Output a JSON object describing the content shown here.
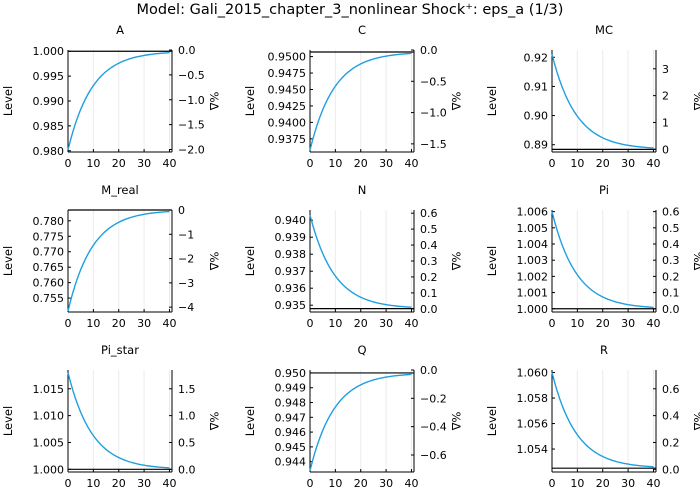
{
  "figure": {
    "title": "Model: Gali_2015_chapter_3_nonlinear        Shock⁺: eps_a  (1/3)",
    "line_color": "#1f9fe0"
  },
  "chart_data": [
    {
      "type": "line",
      "title": "A",
      "ylabel": "Level",
      "y2label": "%Δ",
      "xlim": [
        0,
        41
      ],
      "x_ticks": [
        0,
        10,
        20,
        30,
        40
      ],
      "ylim": [
        0.97975,
        1.00025
      ],
      "y_ticks": [
        "0.980",
        "0.985",
        "0.990",
        "0.995",
        "1.000"
      ],
      "y2lim": [
        -2.05,
        0.0
      ],
      "y2_ticks": [
        "0.0",
        "−0.5",
        "−1.0",
        "−1.5",
        "−2.0"
      ],
      "start": 0.9802,
      "ss": 1.0,
      "decay": 0.9,
      "ss_line": 1.0
    },
    {
      "type": "line",
      "title": "C",
      "ylabel": "Level",
      "y2label": "%Δ",
      "xlim": [
        0,
        41
      ],
      "x_ticks": [
        0,
        10,
        20,
        30,
        40
      ],
      "ylim": [
        0.9355,
        0.951
      ],
      "y_ticks": [
        "0.9375",
        "0.9400",
        "0.9425",
        "0.9450",
        "0.9475",
        "0.9500"
      ],
      "y2lim": [
        -1.63,
        0.0
      ],
      "y2_ticks": [
        "0.0",
        "−0.5",
        "−1.0",
        "−1.5"
      ],
      "start": 0.9358,
      "ss": 0.9507,
      "decay": 0.9,
      "ss_line": 0.9507
    },
    {
      "type": "line",
      "title": "MC",
      "ylabel": "Level",
      "y2label": "%Δ",
      "xlim": [
        0,
        41
      ],
      "x_ticks": [
        0,
        10,
        20,
        30,
        40
      ],
      "ylim": [
        0.8875,
        0.9225
      ],
      "y_ticks": [
        "0.89",
        "0.90",
        "0.91",
        "0.92"
      ],
      "y2lim": [
        -0.1,
        3.7
      ],
      "y2_ticks": [
        "0",
        "1",
        "2",
        "3"
      ],
      "start": 0.921,
      "ss": 0.8884,
      "decay": 0.9,
      "ss_line": 0.8884
    },
    {
      "type": "line",
      "title": "M_real",
      "ylabel": "Level",
      "y2label": "%Δ",
      "xlim": [
        0,
        41
      ],
      "x_ticks": [
        0,
        10,
        20,
        30,
        40
      ],
      "ylim": [
        0.7505,
        0.7835
      ],
      "y_ticks": [
        "0.755",
        "0.760",
        "0.765",
        "0.770",
        "0.775",
        "0.780"
      ],
      "y2lim": [
        -4.2,
        0.0
      ],
      "y2_ticks": [
        "0",
        "−1",
        "−2",
        "−3",
        "−4"
      ],
      "start": 0.7508,
      "ss": 0.7835,
      "decay": 0.9,
      "ss_line": 0.7835
    },
    {
      "type": "line",
      "title": "N",
      "ylabel": "Level",
      "y2label": "%Δ",
      "xlim": [
        0,
        41
      ],
      "x_ticks": [
        0,
        10,
        20,
        30,
        40
      ],
      "ylim": [
        0.9346,
        0.9406
      ],
      "y_ticks": [
        "0.935",
        "0.936",
        "0.937",
        "0.938",
        "0.939",
        "0.940"
      ],
      "y2lim": [
        -0.02,
        0.62
      ],
      "y2_ticks": [
        "0.0",
        "0.1",
        "0.2",
        "0.3",
        "0.4",
        "0.5",
        "0.6"
      ],
      "start": 0.9403,
      "ss": 0.9348,
      "decay": 0.9,
      "ss_line": 0.9348
    },
    {
      "type": "line",
      "title": "Pi",
      "ylabel": "Level",
      "y2label": "%Δ",
      "xlim": [
        0,
        41
      ],
      "x_ticks": [
        0,
        10,
        20,
        30,
        40
      ],
      "ylim": [
        0.9998,
        1.0061
      ],
      "y_ticks": [
        "1.000",
        "1.001",
        "1.002",
        "1.003",
        "1.004",
        "1.005",
        "1.006"
      ],
      "y2lim": [
        -0.02,
        0.61
      ],
      "y2_ticks": [
        "0.0",
        "0.1",
        "0.2",
        "0.3",
        "0.4",
        "0.5",
        "0.6"
      ],
      "start": 1.006,
      "ss": 1.0,
      "decay": 0.9,
      "ss_line": 1.0
    },
    {
      "type": "line",
      "title": "Pi_star",
      "ylabel": "Level",
      "y2label": "%Δ",
      "xlim": [
        0,
        41
      ],
      "x_ticks": [
        0,
        10,
        20,
        30,
        40
      ],
      "ylim": [
        0.9995,
        1.0185
      ],
      "y_ticks": [
        "1.000",
        "1.005",
        "1.010",
        "1.015"
      ],
      "y2lim": [
        -0.05,
        1.85
      ],
      "y2_ticks": [
        "0.0",
        "0.5",
        "1.0",
        "1.5"
      ],
      "start": 1.018,
      "ss": 1.0,
      "decay": 0.9,
      "ss_line": 1.0
    },
    {
      "type": "line",
      "title": "Q",
      "ylabel": "Level",
      "y2label": "%Δ",
      "xlim": [
        0,
        41
      ],
      "x_ticks": [
        0,
        10,
        20,
        30,
        40
      ],
      "ylim": [
        0.9433,
        0.9502
      ],
      "y_ticks": [
        "0.944",
        "0.945",
        "0.946",
        "0.947",
        "0.948",
        "0.949",
        "0.950"
      ],
      "y2lim": [
        -0.72,
        0.0
      ],
      "y2_ticks": [
        "0.0",
        "−0.2",
        "−0.4",
        "−0.6"
      ],
      "start": 0.9434,
      "ss": 0.95,
      "decay": 0.9,
      "ss_line": 0.95
    },
    {
      "type": "line",
      "title": "R",
      "ylabel": "Level",
      "y2label": "%Δ",
      "xlim": [
        0,
        41
      ],
      "x_ticks": [
        0,
        10,
        20,
        30,
        40
      ],
      "ylim": [
        1.0522,
        1.0602
      ],
      "y_ticks": [
        "1.054",
        "1.056",
        "1.058",
        "1.060"
      ],
      "y2lim": [
        -0.02,
        0.74
      ],
      "y2_ticks": [
        "0.0",
        "0.2",
        "0.4",
        "0.6"
      ],
      "start": 1.06,
      "ss": 1.0525,
      "decay": 0.9,
      "ss_line": 1.0525
    }
  ]
}
